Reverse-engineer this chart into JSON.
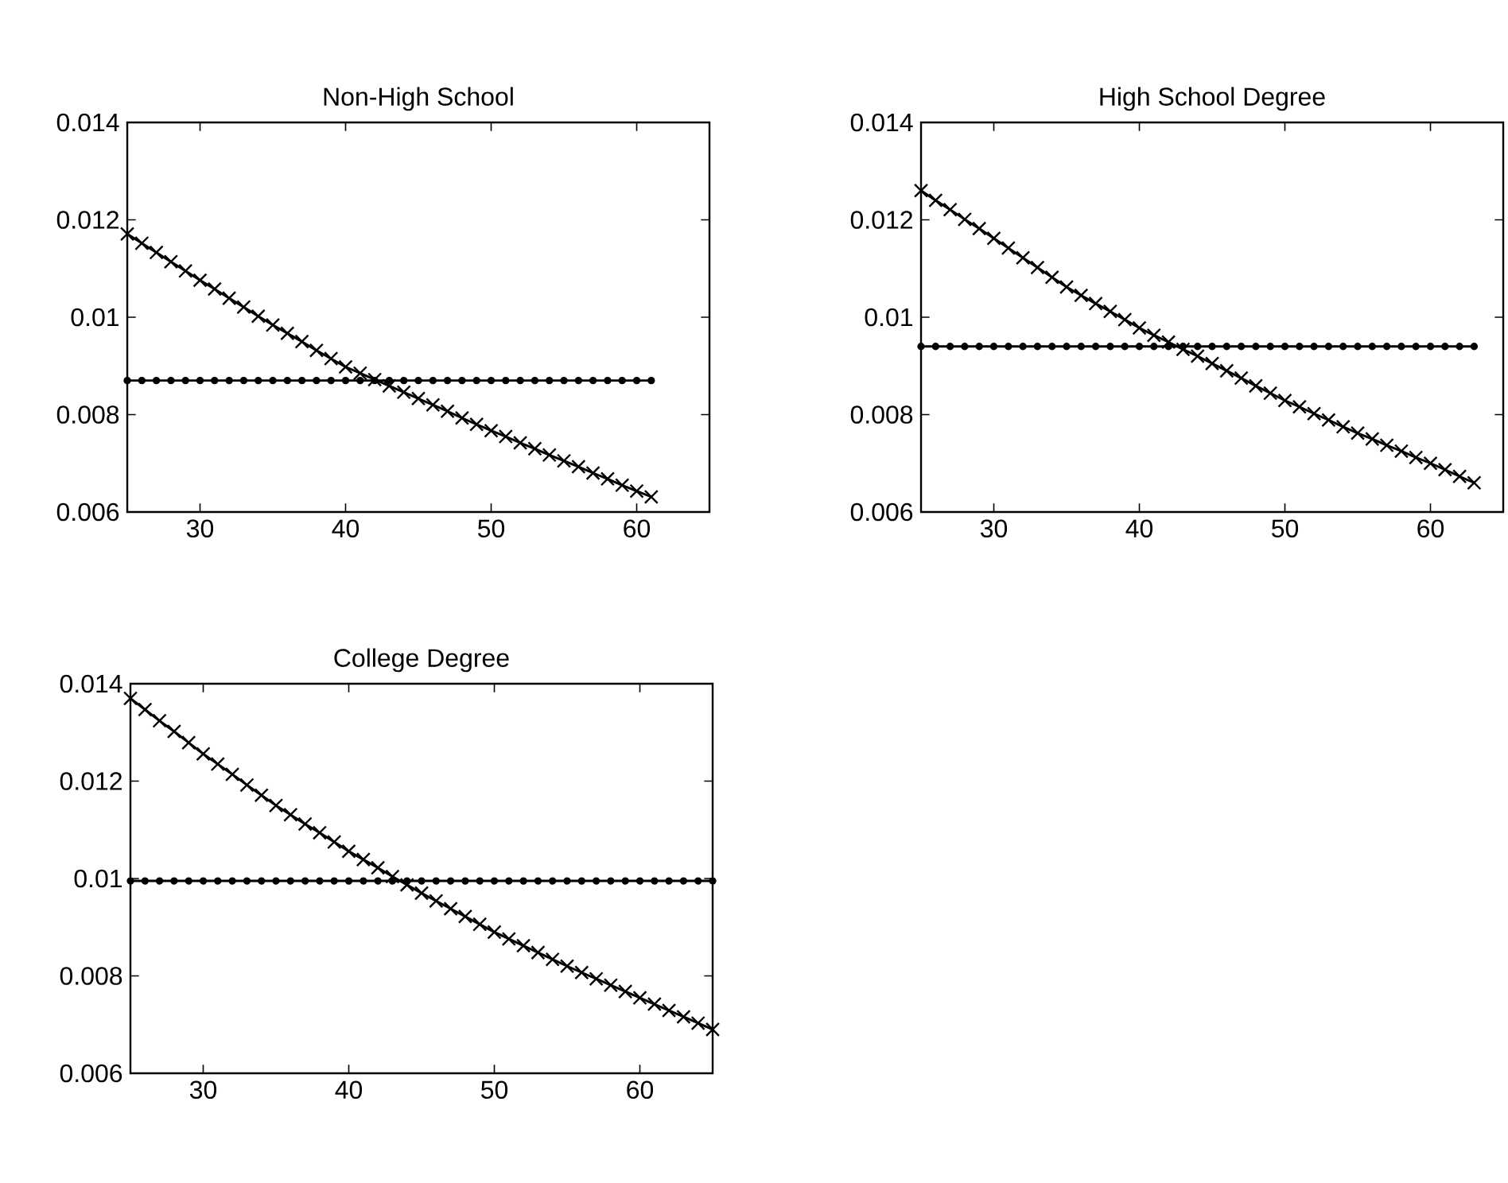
{
  "chart_data": [
    {
      "type": "line",
      "title": "Non-High School",
      "xlim": [
        25,
        65
      ],
      "ylim": [
        0.006,
        0.014
      ],
      "xticks": [
        30,
        40,
        50,
        60
      ],
      "yticks": [
        0.006,
        0.008,
        0.01,
        0.012,
        0.014
      ],
      "series": [
        {
          "color": "#000000",
          "marker": "cross",
          "x": [
            25,
            26,
            27,
            28,
            29,
            30,
            31,
            32,
            33,
            34,
            35,
            36,
            37,
            38,
            39,
            40,
            41,
            42,
            43,
            44,
            45,
            46,
            47,
            48,
            49,
            50,
            51,
            52,
            53,
            54,
            55,
            56,
            57,
            58,
            59,
            60,
            61
          ],
          "values": [
            0.01171,
            0.01152,
            0.01133,
            0.01114,
            0.01095,
            0.01076,
            0.01058,
            0.01039,
            0.01021,
            0.01002,
            0.00984,
            0.00967,
            0.0095,
            0.00932,
            0.00915,
            0.00898,
            0.00885,
            0.00872,
            0.00859,
            0.00846,
            0.00833,
            0.0082,
            0.00807,
            0.00793,
            0.0078,
            0.00767,
            0.00755,
            0.00742,
            0.0073,
            0.00717,
            0.00705,
            0.00693,
            0.0068,
            0.00668,
            0.00655,
            0.00643,
            0.00631
          ]
        },
        {
          "color": "#000000",
          "marker": "circle",
          "x": [
            25,
            26,
            27,
            28,
            29,
            30,
            31,
            32,
            33,
            34,
            35,
            36,
            37,
            38,
            39,
            40,
            41,
            42,
            43,
            44,
            45,
            46,
            47,
            48,
            49,
            50,
            51,
            52,
            53,
            54,
            55,
            56,
            57,
            58,
            59,
            60,
            61
          ],
          "values": [
            0.0087,
            0.0087,
            0.0087,
            0.0087,
            0.0087,
            0.0087,
            0.0087,
            0.0087,
            0.0087,
            0.0087,
            0.0087,
            0.0087,
            0.0087,
            0.0087,
            0.0087,
            0.0087,
            0.0087,
            0.0087,
            0.0087,
            0.0087,
            0.0087,
            0.0087,
            0.0087,
            0.0087,
            0.0087,
            0.0087,
            0.0087,
            0.0087,
            0.0087,
            0.0087,
            0.0087,
            0.0087,
            0.0087,
            0.0087,
            0.0087,
            0.0087,
            0.0087
          ]
        }
      ]
    },
    {
      "type": "line",
      "title": "High School Degree",
      "xlim": [
        25,
        65
      ],
      "ylim": [
        0.006,
        0.014
      ],
      "xticks": [
        30,
        40,
        50,
        60
      ],
      "yticks": [
        0.006,
        0.008,
        0.01,
        0.012,
        0.014
      ],
      "series": [
        {
          "color": "#000000",
          "marker": "cross",
          "x": [
            25,
            26,
            27,
            28,
            29,
            30,
            31,
            32,
            33,
            34,
            35,
            36,
            37,
            38,
            39,
            40,
            41,
            42,
            43,
            44,
            45,
            46,
            47,
            48,
            49,
            50,
            51,
            52,
            53,
            54,
            55,
            56,
            57,
            58,
            59,
            60,
            61,
            62,
            63
          ],
          "values": [
            0.0126,
            0.0124,
            0.01221,
            0.01201,
            0.01182,
            0.01162,
            0.01142,
            0.01122,
            0.01102,
            0.01082,
            0.01062,
            0.01045,
            0.01028,
            0.01012,
            0.00995,
            0.00978,
            0.00963,
            0.00949,
            0.00934,
            0.0092,
            0.00905,
            0.0089,
            0.00875,
            0.00859,
            0.00844,
            0.00829,
            0.00816,
            0.00802,
            0.00789,
            0.00775,
            0.00762,
            0.0075,
            0.00737,
            0.00725,
            0.00712,
            0.007,
            0.00687,
            0.00673,
            0.0066
          ]
        },
        {
          "color": "#000000",
          "marker": "circle",
          "x": [
            25,
            26,
            27,
            28,
            29,
            30,
            31,
            32,
            33,
            34,
            35,
            36,
            37,
            38,
            39,
            40,
            41,
            42,
            43,
            44,
            45,
            46,
            47,
            48,
            49,
            50,
            51,
            52,
            53,
            54,
            55,
            56,
            57,
            58,
            59,
            60,
            61,
            62,
            63
          ],
          "values": [
            0.0094,
            0.0094,
            0.0094,
            0.0094,
            0.0094,
            0.0094,
            0.0094,
            0.0094,
            0.0094,
            0.0094,
            0.0094,
            0.0094,
            0.0094,
            0.0094,
            0.0094,
            0.0094,
            0.0094,
            0.0094,
            0.0094,
            0.0094,
            0.0094,
            0.0094,
            0.0094,
            0.0094,
            0.0094,
            0.0094,
            0.0094,
            0.0094,
            0.0094,
            0.0094,
            0.0094,
            0.0094,
            0.0094,
            0.0094,
            0.0094,
            0.0094,
            0.0094,
            0.0094,
            0.0094
          ]
        }
      ]
    },
    {
      "type": "line",
      "title": "College Degree",
      "xlim": [
        25,
        65
      ],
      "ylim": [
        0.006,
        0.014
      ],
      "xticks": [
        30,
        40,
        50,
        60
      ],
      "yticks": [
        0.006,
        0.008,
        0.01,
        0.012,
        0.014
      ],
      "series": [
        {
          "color": "#000000",
          "marker": "cross",
          "x": [
            25,
            26,
            27,
            28,
            29,
            30,
            31,
            32,
            33,
            34,
            35,
            36,
            37,
            38,
            39,
            40,
            41,
            42,
            43,
            44,
            45,
            46,
            47,
            48,
            49,
            50,
            51,
            52,
            53,
            54,
            55,
            56,
            57,
            58,
            59,
            60,
            61,
            62,
            63,
            64,
            65
          ],
          "values": [
            0.0137,
            0.01347,
            0.01324,
            0.01302,
            0.01279,
            0.01256,
            0.01235,
            0.01214,
            0.01192,
            0.01171,
            0.0115,
            0.01131,
            0.01112,
            0.01094,
            0.01075,
            0.01056,
            0.01039,
            0.01022,
            0.01004,
            0.00987,
            0.0097,
            0.00954,
            0.00938,
            0.00922,
            0.00906,
            0.0089,
            0.00876,
            0.00862,
            0.00848,
            0.00834,
            0.0082,
            0.00807,
            0.00794,
            0.00781,
            0.00768,
            0.00755,
            0.00742,
            0.00729,
            0.00716,
            0.00703,
            0.0069
          ]
        },
        {
          "color": "#000000",
          "marker": "circle",
          "x": [
            25,
            26,
            27,
            28,
            29,
            30,
            31,
            32,
            33,
            34,
            35,
            36,
            37,
            38,
            39,
            40,
            41,
            42,
            43,
            44,
            45,
            46,
            47,
            48,
            49,
            50,
            51,
            52,
            53,
            54,
            55,
            56,
            57,
            58,
            59,
            60,
            61,
            62,
            63,
            64,
            65
          ],
          "values": [
            0.00995,
            0.00995,
            0.00995,
            0.00995,
            0.00995,
            0.00995,
            0.00995,
            0.00995,
            0.00995,
            0.00995,
            0.00995,
            0.00995,
            0.00995,
            0.00995,
            0.00995,
            0.00995,
            0.00995,
            0.00995,
            0.00995,
            0.00995,
            0.00995,
            0.00995,
            0.00995,
            0.00995,
            0.00995,
            0.00995,
            0.00995,
            0.00995,
            0.00995,
            0.00995,
            0.00995,
            0.00995,
            0.00995,
            0.00995,
            0.00995,
            0.00995,
            0.00995,
            0.00995,
            0.00995,
            0.00995,
            0.00995
          ]
        }
      ]
    }
  ]
}
